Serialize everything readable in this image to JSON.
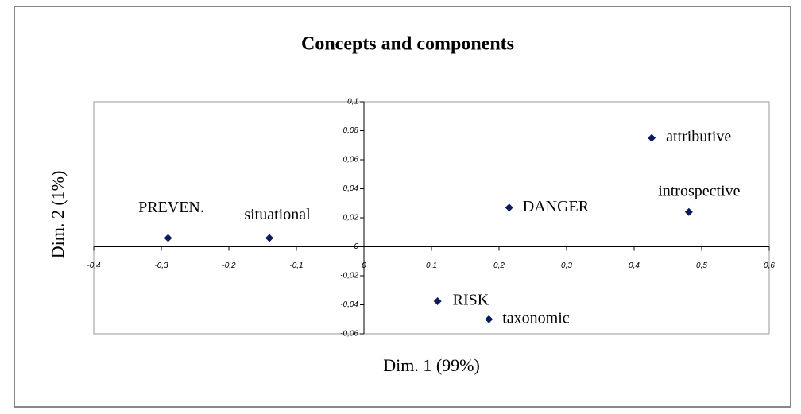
{
  "chart_data": {
    "type": "scatter",
    "title": "Concepts and components",
    "xlabel": "Dim. 1 (99%)",
    "ylabel": "Dim. 2 (1%)",
    "color": "#0d1a5c",
    "points": [
      {
        "label": "PREVEN.",
        "x": -0.29,
        "y": 0.006
      },
      {
        "label": "situational",
        "x": -0.14,
        "y": 0.006
      },
      {
        "label": "DANGER",
        "x": 0.215,
        "y": 0.027
      },
      {
        "label": "attributive",
        "x": 0.426,
        "y": 0.075
      },
      {
        "label": "introspective",
        "x": 0.481,
        "y": 0.024
      },
      {
        "label": "RISK",
        "x": 0.109,
        "y": -0.0375
      },
      {
        "label": "taxonomic",
        "x": 0.185,
        "y": -0.05
      }
    ],
    "xlim": [
      -0.4,
      0.6
    ],
    "xticks": [
      {
        "value": -0.4,
        "label": "-0,4"
      },
      {
        "value": -0.3,
        "label": "-0,3"
      },
      {
        "value": -0.2,
        "label": "-0,2"
      },
      {
        "value": -0.1,
        "label": "-0,1"
      },
      0,
      {
        "value": 0.1,
        "label": "0,1"
      },
      {
        "value": 0.2,
        "label": "0,2"
      },
      {
        "value": 0.3,
        "label": "0,3"
      },
      {
        "value": 0.4,
        "label": "0,4"
      },
      {
        "value": 0.5,
        "label": "0,5"
      },
      {
        "value": 0.6,
        "label": "0,6"
      }
    ],
    "ylim": [
      -0.06,
      0.1
    ],
    "yticks": [
      {
        "value": -0.06,
        "label": "-0,06"
      },
      {
        "value": -0.04,
        "label": "-0,04"
      },
      {
        "value": -0.02,
        "label": "-0,02"
      },
      0,
      {
        "value": 0.02,
        "label": "0,02"
      },
      {
        "value": 0.04,
        "label": "0,04"
      },
      {
        "value": 0.06,
        "label": "0,06"
      },
      {
        "value": 0.08,
        "label": "0,08"
      },
      {
        "value": 0.1,
        "label": "0,1"
      }
    ]
  }
}
